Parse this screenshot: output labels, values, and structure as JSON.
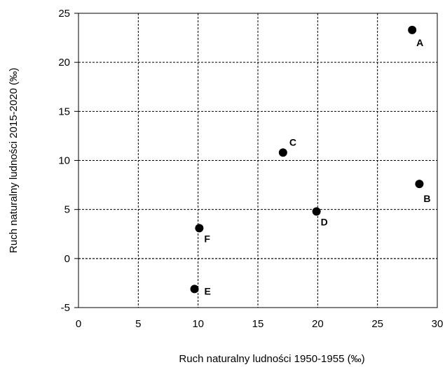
{
  "chart_data": {
    "type": "scatter",
    "xlabel": "Ruch naturalny ludności 1950-1955 (‰)",
    "ylabel": "Ruch naturalny ludności 2015-2020 (‰)",
    "xlim": [
      0,
      30
    ],
    "ylim": [
      -5,
      25
    ],
    "x_ticks": [
      "0",
      "5",
      "10",
      "15",
      "20",
      "25",
      "30"
    ],
    "y_ticks": [
      "-5",
      "0",
      "5",
      "10",
      "15",
      "20",
      "25"
    ],
    "grid": true,
    "points": [
      {
        "label": "A",
        "x": 27.9,
        "y": 23.3
      },
      {
        "label": "B",
        "x": 28.5,
        "y": 7.6
      },
      {
        "label": "C",
        "x": 17.1,
        "y": 10.8
      },
      {
        "label": "D",
        "x": 19.9,
        "y": 4.8
      },
      {
        "label": "E",
        "x": 9.7,
        "y": -3.1
      },
      {
        "label": "F",
        "x": 10.1,
        "y": 3.1
      }
    ],
    "point_color": "#000000"
  }
}
